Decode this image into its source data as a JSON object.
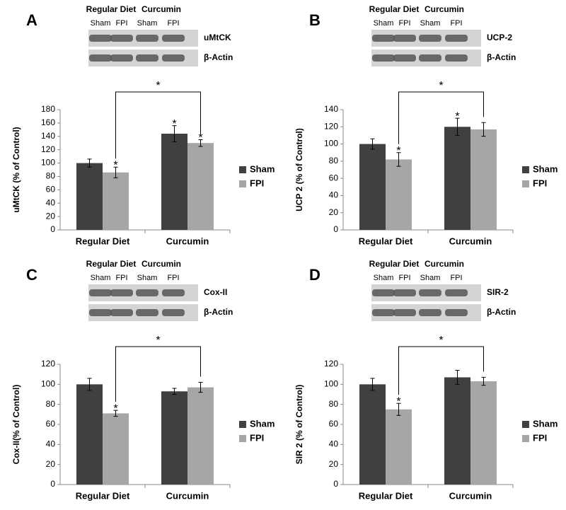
{
  "chart_data": [
    {
      "type": "bar",
      "panel_label": "A",
      "blot": {
        "group_labels": [
          "Regular Diet",
          "Curcumin"
        ],
        "lane_labels": [
          "Sham",
          "FPI",
          "Sham",
          "FPI"
        ],
        "band_labels": [
          "uMtCK",
          "β-Actin"
        ]
      },
      "ylabel": "uMtCK (% of Control)",
      "categories": [
        "Regular Diet",
        "Curcumin"
      ],
      "series": [
        {
          "name": "Sham",
          "color": "#404040",
          "values": [
            100,
            144
          ],
          "errors": [
            6,
            12
          ]
        },
        {
          "name": "FPI",
          "color": "#a6a6a6",
          "values": [
            86,
            130
          ],
          "errors": [
            8,
            5
          ]
        }
      ],
      "ylim": [
        0,
        180
      ],
      "yticks": [
        0,
        20,
        40,
        60,
        80,
        100,
        120,
        140,
        160,
        180
      ],
      "annotations": [
        {
          "text": "*",
          "series": 1,
          "category": 0
        },
        {
          "text": "*",
          "series": 0,
          "category": 1
        },
        {
          "text": "*",
          "series": 1,
          "category": 1
        }
      ],
      "bracket": {
        "series": 1,
        "label": "*"
      },
      "legend": "right"
    },
    {
      "type": "bar",
      "panel_label": "B",
      "blot": {
        "group_labels": [
          "Regular Diet",
          "Curcumin"
        ],
        "lane_labels": [
          "Sham",
          "FPI",
          "Sham",
          "FPI"
        ],
        "band_labels": [
          "UCP-2",
          "β-Actin"
        ]
      },
      "ylabel": "UCP 2 (% of Control)",
      "categories": [
        "Regular Diet",
        "Curcumin"
      ],
      "series": [
        {
          "name": "Sham",
          "color": "#404040",
          "values": [
            100,
            120
          ],
          "errors": [
            6,
            10
          ]
        },
        {
          "name": "FPI",
          "color": "#a6a6a6",
          "values": [
            82,
            117
          ],
          "errors": [
            8,
            8
          ]
        }
      ],
      "ylim": [
        0,
        140
      ],
      "yticks": [
        0,
        20,
        40,
        60,
        80,
        100,
        120,
        140
      ],
      "annotations": [
        {
          "text": "*",
          "series": 1,
          "category": 0
        },
        {
          "text": "*",
          "series": 0,
          "category": 1
        }
      ],
      "bracket": {
        "series": 1,
        "label": "*"
      },
      "legend": "right"
    },
    {
      "type": "bar",
      "panel_label": "C",
      "blot": {
        "group_labels": [
          "Regular Diet",
          "Curcumin"
        ],
        "lane_labels": [
          "Sham",
          "FPI",
          "Sham",
          "FPI"
        ],
        "band_labels": [
          "Cox-II",
          "β-Actin"
        ]
      },
      "ylabel": "Cox-II(% of Control)",
      "categories": [
        "Regular Diet",
        "Curcumin"
      ],
      "series": [
        {
          "name": "Sham",
          "color": "#404040",
          "values": [
            100,
            93
          ],
          "errors": [
            6,
            3
          ]
        },
        {
          "name": "FPI",
          "color": "#a6a6a6",
          "values": [
            71,
            97
          ],
          "errors": [
            3,
            5
          ]
        }
      ],
      "ylim": [
        0,
        120
      ],
      "yticks": [
        0,
        20,
        40,
        60,
        80,
        100,
        120
      ],
      "annotations": [
        {
          "text": "*",
          "series": 1,
          "category": 0
        }
      ],
      "bracket": {
        "series": 1,
        "label": "*"
      },
      "legend": "right"
    },
    {
      "type": "bar",
      "panel_label": "D",
      "blot": {
        "group_labels": [
          "Regular Diet",
          "Curcumin"
        ],
        "lane_labels": [
          "Sham",
          "FPI",
          "Sham",
          "FPI"
        ],
        "band_labels": [
          "SIR-2",
          "β-Actin"
        ]
      },
      "ylabel": "SIR 2 (% of Control)",
      "categories": [
        "Regular Diet",
        "Curcumin"
      ],
      "series": [
        {
          "name": "Sham",
          "color": "#404040",
          "values": [
            100,
            107
          ],
          "errors": [
            6,
            7
          ]
        },
        {
          "name": "FPI",
          "color": "#a6a6a6",
          "values": [
            75,
            103
          ],
          "errors": [
            6,
            4
          ]
        }
      ],
      "ylim": [
        0,
        120
      ],
      "yticks": [
        0,
        20,
        40,
        60,
        80,
        100,
        120
      ],
      "annotations": [
        {
          "text": "*",
          "series": 1,
          "category": 0
        }
      ],
      "bracket": {
        "series": 1,
        "label": "*"
      },
      "legend": "right"
    }
  ]
}
